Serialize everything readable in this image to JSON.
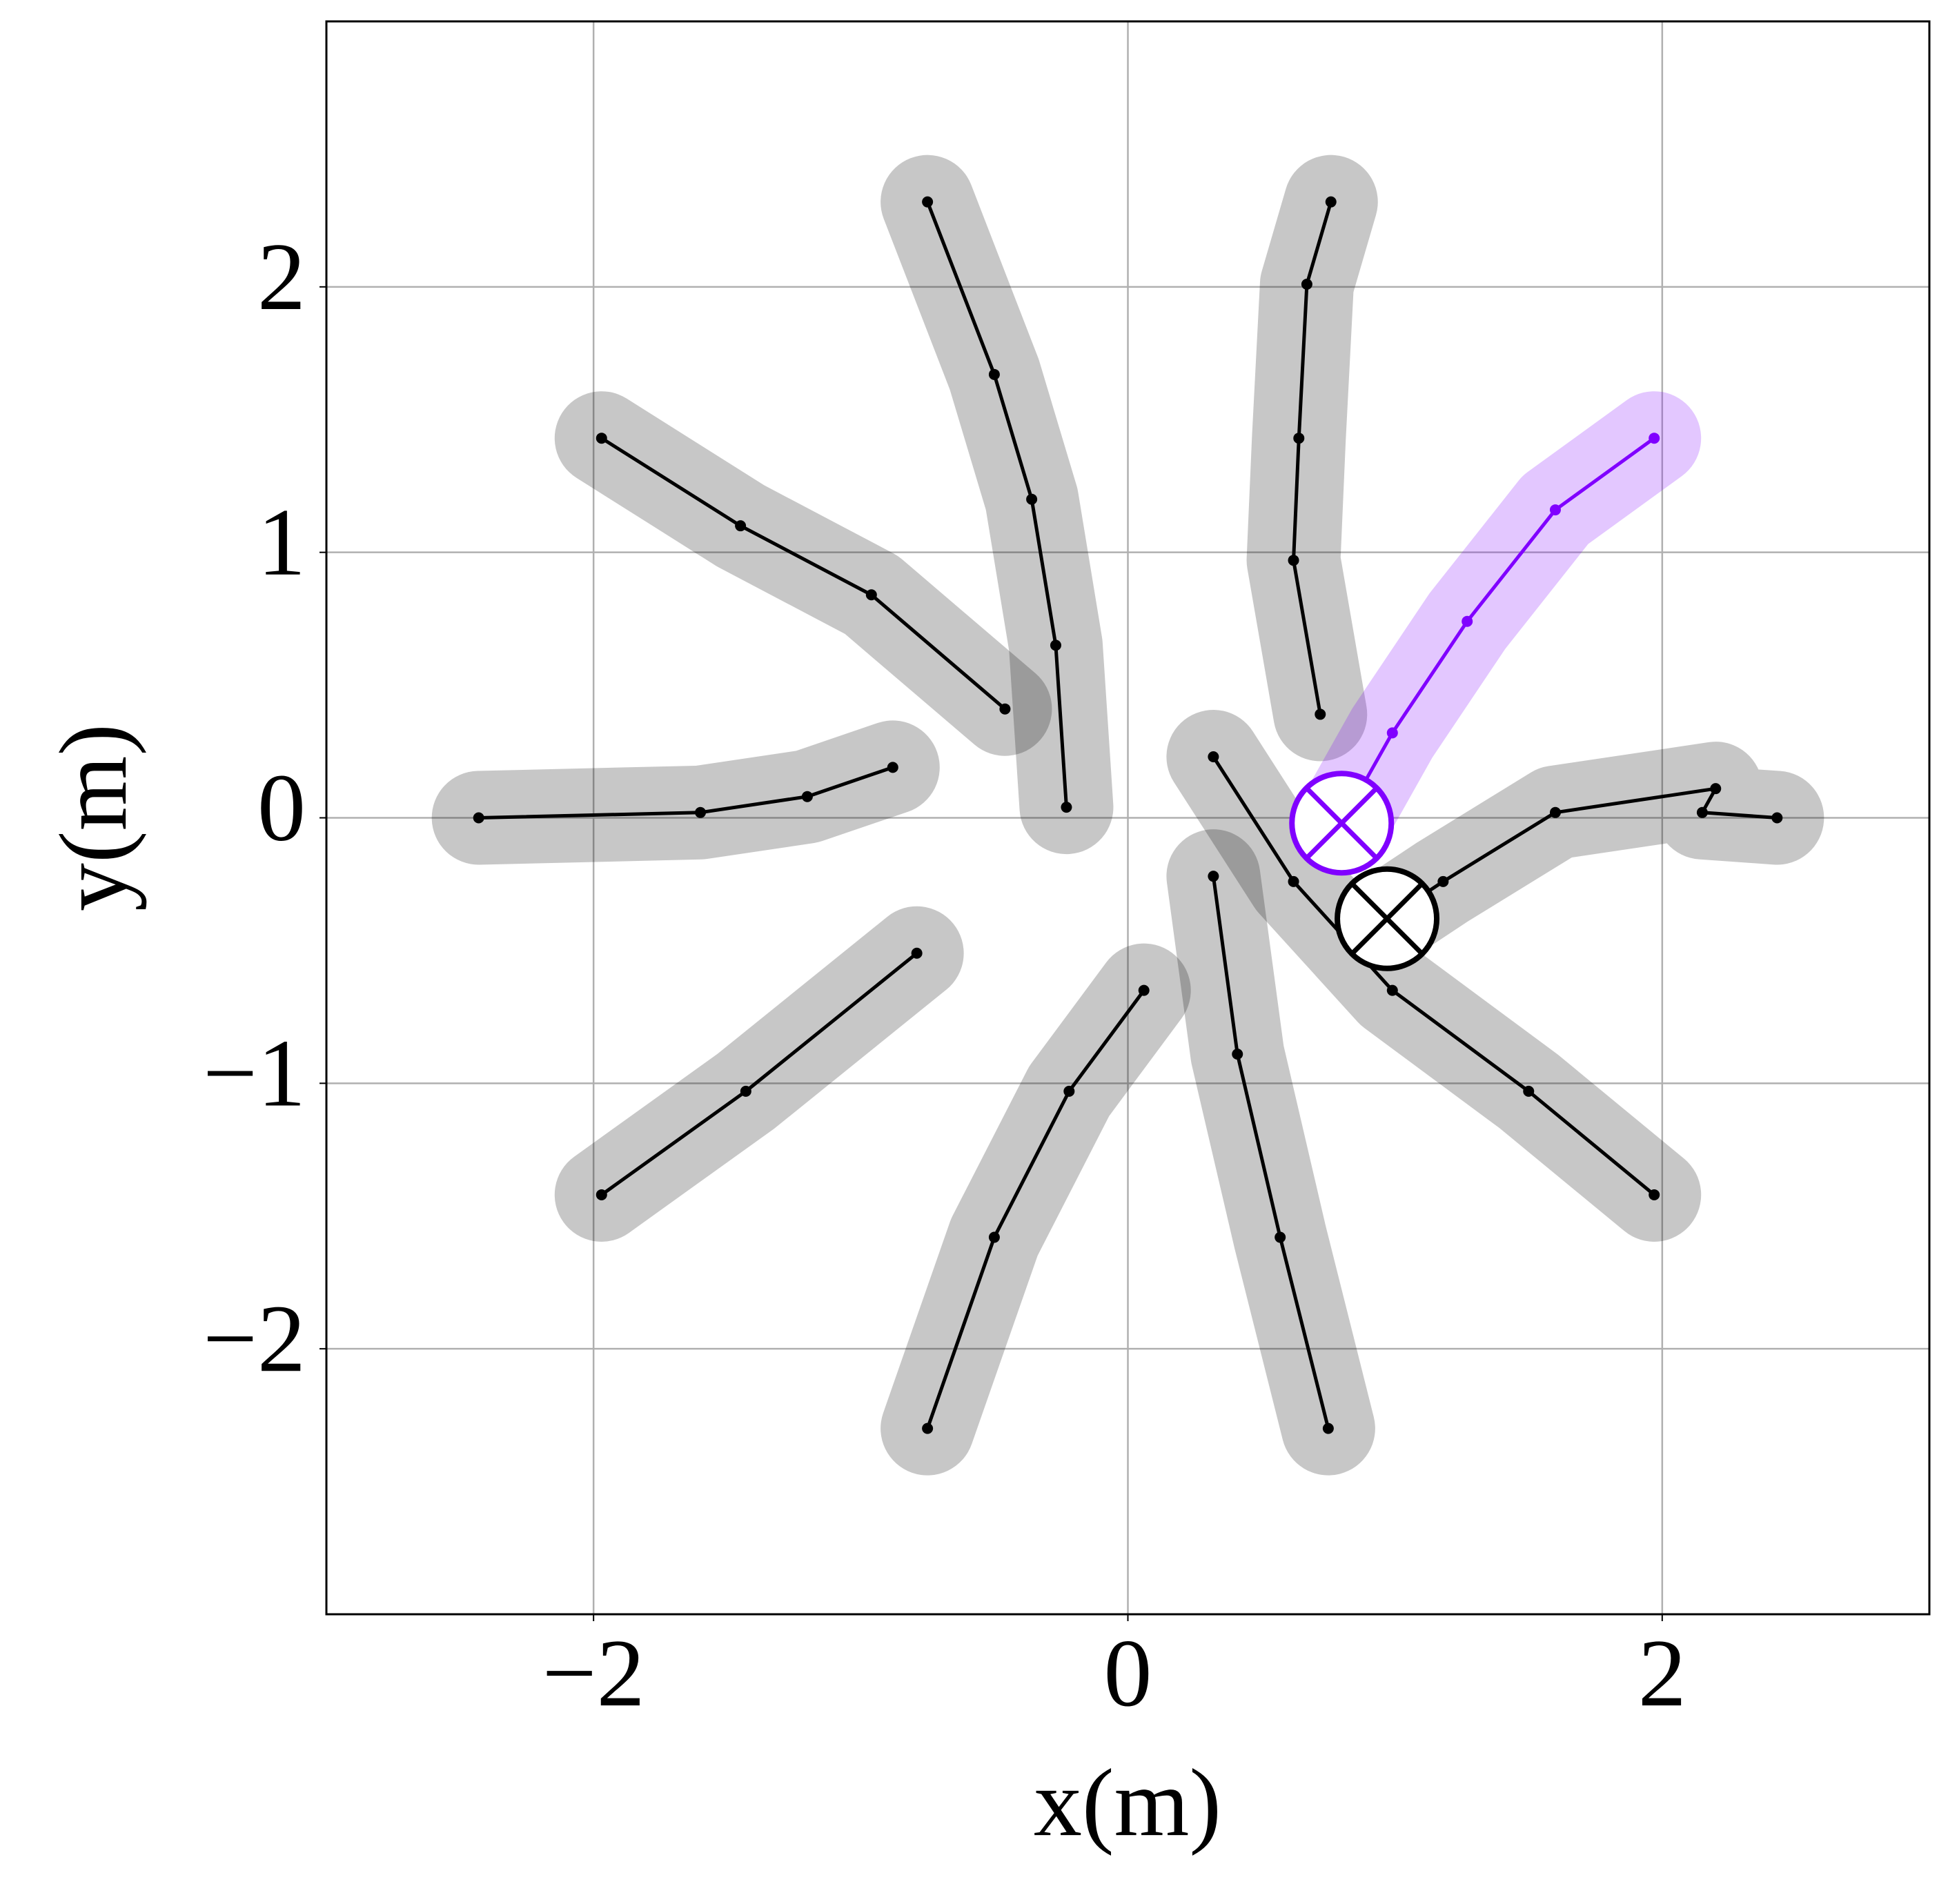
{
  "chart_data": {
    "type": "line",
    "xlabel": "x(m)",
    "ylabel": "y(m)",
    "xlim": [
      -3,
      3
    ],
    "ylim": [
      -3,
      3
    ],
    "xticks": [
      {
        "value": -2,
        "label": "−2"
      },
      0,
      2
    ],
    "yticks": [
      {
        "value": -2,
        "label": "−2"
      },
      {
        "value": -1,
        "label": "−1"
      },
      0,
      1,
      2
    ],
    "grid": true,
    "series": [
      {
        "color": "#000000",
        "x": [
          -2.43,
          -1.6,
          -1.2,
          -0.88
        ],
        "y": [
          0,
          0.02,
          0.08,
          0.19
        ]
      },
      {
        "color": "#000000",
        "x": [
          -1.97,
          -1.45,
          -0.96,
          -0.46
        ],
        "y": [
          1.43,
          1.1,
          0.84,
          0.41
        ]
      },
      {
        "color": "#000000",
        "x": [
          -0.75,
          -0.5,
          -0.36,
          -0.27,
          -0.23
        ],
        "y": [
          2.32,
          1.67,
          1.2,
          0.65,
          0.04
        ]
      },
      {
        "color": "#000000",
        "x": [
          0.76,
          0.67,
          0.64,
          0.62,
          0.72
        ],
        "y": [
          2.32,
          2.01,
          1.43,
          0.97,
          0.39
        ]
      },
      {
        "color": "#8000ff",
        "x": [
          1.97,
          1.6,
          1.27,
          0.99,
          0.8
        ],
        "y": [
          1.43,
          1.16,
          0.74,
          0.32,
          -0.02
        ]
      },
      {
        "color": "#000000",
        "x": [
          2.43,
          2.15,
          2.2,
          1.6,
          1.18,
          0.97
        ],
        "y": [
          0,
          0.02,
          0.11,
          0.02,
          -0.24,
          -0.38
        ]
      },
      {
        "color": "#000000",
        "x": [
          1.97,
          1.5,
          0.99,
          0.62,
          0.32
        ],
        "y": [
          -1.42,
          -1.03,
          -0.65,
          -0.24,
          0.23
        ]
      },
      {
        "color": "#000000",
        "x": [
          0.75,
          0.57,
          0.41,
          0.32
        ],
        "y": [
          -2.3,
          -1.58,
          -0.89,
          -0.22
        ]
      },
      {
        "color": "#000000",
        "x": [
          -0.75,
          -0.5,
          -0.22,
          0.06
        ],
        "y": [
          -2.3,
          -1.58,
          -1.03,
          -0.65
        ]
      },
      {
        "color": "#000000",
        "x": [
          -1.97,
          -1.43,
          -0.79
        ],
        "y": [
          -1.42,
          -1.03,
          -0.51
        ]
      }
    ],
    "markers": [
      {
        "x": 0.8,
        "y": -0.02,
        "color": "#8000ff"
      },
      {
        "x": 0.97,
        "y": -0.38,
        "color": "#000000"
      }
    ]
  }
}
